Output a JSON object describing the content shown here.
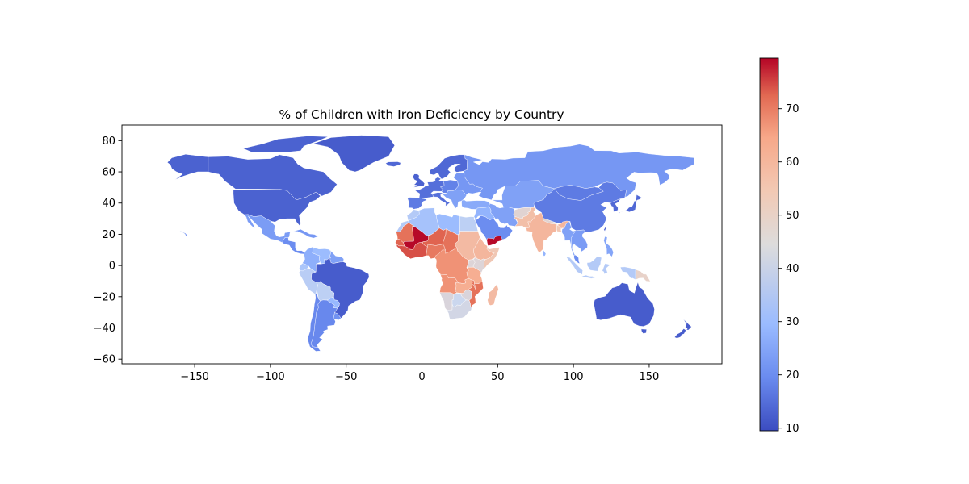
{
  "chart_data": {
    "type": "choropleth",
    "title": "% of Children with Iron Deficiency by Country",
    "xlim": [
      -198,
      198
    ],
    "ylim": [
      -63,
      90
    ],
    "x_ticks": [
      -150,
      -100,
      -50,
      0,
      50,
      100,
      150
    ],
    "x_tick_labels": [
      "−150",
      "−100",
      "−50",
      "0",
      "50",
      "100",
      "150"
    ],
    "y_ticks": [
      -60,
      -40,
      -20,
      0,
      20,
      40,
      60,
      80
    ],
    "y_tick_labels": [
      "−60",
      "−40",
      "−20",
      "0",
      "20",
      "40",
      "60",
      "80"
    ],
    "colormap": "coolwarm",
    "colorbar": {
      "min": 9.5,
      "max": 79.5,
      "ticks": [
        10,
        20,
        30,
        40,
        50,
        60,
        70
      ],
      "tick_labels": [
        "10",
        "20",
        "30",
        "40",
        "50",
        "60",
        "70"
      ],
      "placement": "right"
    },
    "colormap_stops": [
      "#3b4cc0",
      "#6a8bef",
      "#9abbff",
      "#c9d7f0",
      "#edd1c2",
      "#f7a889",
      "#e26952",
      "#b40426"
    ],
    "regions": [
      {
        "name": "Canada",
        "value": 13
      },
      {
        "name": "Alaska",
        "value": 13
      },
      {
        "name": "Canadian Arctic Islands",
        "value": 13
      },
      {
        "name": "Greenland",
        "value": 12
      },
      {
        "name": "United States",
        "value": 13
      },
      {
        "name": "Mexico",
        "value": 23
      },
      {
        "name": "Central America",
        "value": 20
      },
      {
        "name": "Caribbean",
        "value": 22
      },
      {
        "name": "Colombia",
        "value": 27
      },
      {
        "name": "Venezuela",
        "value": 30
      },
      {
        "name": "Guianas",
        "value": 24
      },
      {
        "name": "Ecuador",
        "value": 33
      },
      {
        "name": "Peru",
        "value": 36
      },
      {
        "name": "Brazil",
        "value": 12
      },
      {
        "name": "Bolivia",
        "value": 37
      },
      {
        "name": "Paraguay",
        "value": 29
      },
      {
        "name": "Uruguay",
        "value": 21
      },
      {
        "name": "Chile",
        "value": 19
      },
      {
        "name": "Argentina",
        "value": 19
      },
      {
        "name": "Iceland",
        "value": 14
      },
      {
        "name": "British Isles",
        "value": 13
      },
      {
        "name": "Scandinavia",
        "value": 14
      },
      {
        "name": "Western Europe",
        "value": 15
      },
      {
        "name": "Iberia",
        "value": 17
      },
      {
        "name": "Central Europe",
        "value": 18
      },
      {
        "name": "Eastern Europe",
        "value": 22
      },
      {
        "name": "Balkans",
        "value": 24
      },
      {
        "name": "Italy",
        "value": 15
      },
      {
        "name": "Turkey",
        "value": 26
      },
      {
        "name": "Russia",
        "value": 22
      },
      {
        "name": "Central Asia",
        "value": 24
      },
      {
        "name": "Mongolia",
        "value": 17
      },
      {
        "name": "China",
        "value": 17
      },
      {
        "name": "Korea",
        "value": 14
      },
      {
        "name": "Japan",
        "value": 14
      },
      {
        "name": "Iran",
        "value": 24
      },
      {
        "name": "Middle East",
        "value": 28
      },
      {
        "name": "Arabian Peninsula",
        "value": 20
      },
      {
        "name": "Yemen",
        "value": 79
      },
      {
        "name": "Afghanistan",
        "value": 46
      },
      {
        "name": "Pakistan",
        "value": 54
      },
      {
        "name": "India",
        "value": 56
      },
      {
        "name": "Nepal",
        "value": 46
      },
      {
        "name": "Bangladesh",
        "value": 52
      },
      {
        "name": "Myanmar",
        "value": 24
      },
      {
        "name": "Mainland Southeast Asia",
        "value": 23
      },
      {
        "name": "Malaysia",
        "value": 20
      },
      {
        "name": "Indonesia",
        "value": 35
      },
      {
        "name": "Philippines",
        "value": 25
      },
      {
        "name": "Papua New Guinea",
        "value": 48
      },
      {
        "name": "Sri Lanka",
        "value": 28
      },
      {
        "name": "Taiwan",
        "value": 13
      },
      {
        "name": "Australia",
        "value": 12
      },
      {
        "name": "New Zealand",
        "value": 12
      },
      {
        "name": "Morocco",
        "value": 35
      },
      {
        "name": "Algeria",
        "value": 32
      },
      {
        "name": "Libya",
        "value": 30
      },
      {
        "name": "Egypt",
        "value": 37
      },
      {
        "name": "Mauritania",
        "value": 68
      },
      {
        "name": "Mali",
        "value": 79
      },
      {
        "name": "Niger",
        "value": 70
      },
      {
        "name": "Chad",
        "value": 68
      },
      {
        "name": "Sudan",
        "value": 55
      },
      {
        "name": "Senegal",
        "value": 70
      },
      {
        "name": "West Africa Coast",
        "value": 72
      },
      {
        "name": "Nigeria",
        "value": 67
      },
      {
        "name": "Ethiopia",
        "value": 56
      },
      {
        "name": "Somalia",
        "value": 52
      },
      {
        "name": "Kenya",
        "value": 45
      },
      {
        "name": "Tanzania",
        "value": 58
      },
      {
        "name": "Central Africa",
        "value": 63
      },
      {
        "name": "Angola",
        "value": 63
      },
      {
        "name": "Zambia",
        "value": 58
      },
      {
        "name": "Mozambique",
        "value": 68
      },
      {
        "name": "Namibia",
        "value": 44
      },
      {
        "name": "Botswana",
        "value": 40
      },
      {
        "name": "South Africa",
        "value": 42
      },
      {
        "name": "Madagascar",
        "value": 55
      },
      {
        "name": "Hawaii",
        "value": 20
      }
    ]
  }
}
